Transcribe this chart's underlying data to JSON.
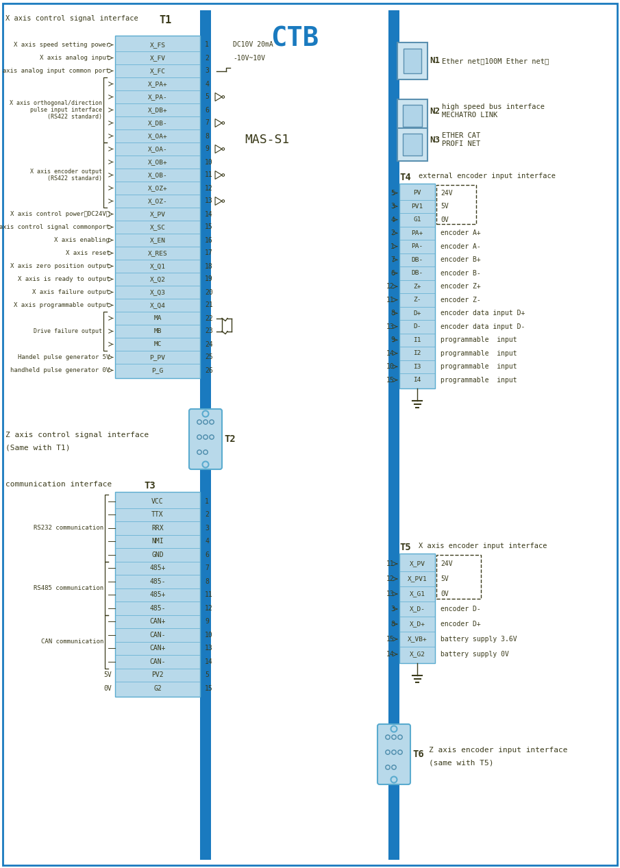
{
  "bg_color": "#ffffff",
  "main_bus_color": "#1a7abf",
  "connector_fill": "#b8d9ea",
  "connector_border": "#5aabcf",
  "text_color": "#3a3a1a",
  "blue_text": "#1a7abf",
  "t1_title": "T1",
  "t1_label": "X axis control signal interface",
  "t1_pins": [
    [
      "X_FS",
      "1",
      "X axis speed setting power"
    ],
    [
      "X_FV",
      "2",
      "X axis analog input"
    ],
    [
      "X_FC",
      "3",
      "X axis analog input common port"
    ],
    [
      "X_PA+",
      "4",
      ""
    ],
    [
      "X_PA-",
      "5",
      ""
    ],
    [
      "X_DB+",
      "6",
      ""
    ],
    [
      "X_DB-",
      "7",
      ""
    ],
    [
      "X_OA+",
      "8",
      ""
    ],
    [
      "X_OA-",
      "9",
      ""
    ],
    [
      "X_OB+",
      "10",
      ""
    ],
    [
      "X_OB-",
      "11",
      ""
    ],
    [
      "X_OZ+",
      "12",
      ""
    ],
    [
      "X_OZ-",
      "13",
      ""
    ],
    [
      "X_PV",
      "14",
      "X axis control power（DC24V）"
    ],
    [
      "X_SC",
      "15",
      "X axis control signal commonport"
    ],
    [
      "X_EN",
      "16",
      "X axis enabling"
    ],
    [
      "X_RES",
      "17",
      "X axis reset"
    ],
    [
      "X_Q1",
      "18",
      "X axis zero position output"
    ],
    [
      "X_Q2",
      "19",
      "X axis is ready to output"
    ],
    [
      "X_Q3",
      "20",
      "X axis failure output"
    ],
    [
      "X_Q4",
      "21",
      "X axis programmable output"
    ],
    [
      "MA",
      "22",
      ""
    ],
    [
      "MB",
      "23",
      ""
    ],
    [
      "MC",
      "24",
      ""
    ],
    [
      "P_PV",
      "25",
      "Handel pulse generator 5V"
    ],
    [
      "P_G",
      "26",
      "handheld pulse generator 0V"
    ]
  ],
  "t4_title": "T4",
  "t4_label": "external encoder input interface",
  "t4_pins": [
    [
      "PV",
      "5",
      "24V"
    ],
    [
      "PV1",
      "3",
      "5V"
    ],
    [
      "G1",
      "4",
      "0V"
    ],
    [
      "PA+",
      "2",
      "encoder A+"
    ],
    [
      "PA-",
      "1",
      "encoder A-"
    ],
    [
      "DB-",
      "7",
      "encoder B+"
    ],
    [
      "DB-",
      "6",
      "encoder B-"
    ],
    [
      "Z+",
      "12",
      "encoder Z+"
    ],
    [
      "Z-",
      "11",
      "encoder Z-"
    ],
    [
      "D+",
      "8",
      "encoder data input D+"
    ],
    [
      "D-",
      "13",
      "encoder data input D-"
    ],
    [
      "I1",
      "9",
      "programmable  input"
    ],
    [
      "I2",
      "14",
      "programmable  input"
    ],
    [
      "I3",
      "10",
      "programmable  input"
    ],
    [
      "I4",
      "15",
      "programmable  input"
    ]
  ],
  "t5_title": "T5",
  "t5_label": "X axis encoder input interface",
  "t5_pins": [
    [
      "X_PV",
      "11",
      "24V"
    ],
    [
      "X_PV1",
      "12",
      "5V"
    ],
    [
      "X_G1",
      "13",
      "0V"
    ],
    [
      "X_D-",
      "3",
      "encoder D-"
    ],
    [
      "X_D+",
      "8",
      "encoder D+"
    ],
    [
      "X_VB+",
      "15",
      "battery supply 3.6V"
    ],
    [
      "X_G2",
      "14",
      "battery supply 0V"
    ]
  ],
  "ctb_label": "CTB",
  "mas_label": "MAS-S1",
  "n1_label": "N1",
  "n1_text": "Ether net（100M Ether net）",
  "n2_label": "N2",
  "n3_label": "N3",
  "n2_text": "high speed bus interface\nMECHATRO LINK",
  "n3_text": "ETHER CAT\nPROFI NET",
  "t2_title": "T2",
  "t2_label_line1": "Z axis control signal interface",
  "t2_label_line2": "(Same with T1)",
  "t3_title": "T3",
  "t3_label": "communication interface",
  "t3_pins": [
    [
      "VCC",
      "1"
    ],
    [
      "TTX",
      "2"
    ],
    [
      "RRX",
      "3"
    ],
    [
      "NMI",
      "4"
    ],
    [
      "GND",
      "6"
    ],
    [
      "485+",
      "7"
    ],
    [
      "485-",
      "8"
    ],
    [
      "485+",
      "11"
    ],
    [
      "485-",
      "12"
    ],
    [
      "CAN+",
      "9"
    ],
    [
      "CAN-",
      "10"
    ],
    [
      "CAN+",
      "13"
    ],
    [
      "CAN-",
      "14"
    ],
    [
      "PV2",
      "5"
    ],
    [
      "G2",
      "15"
    ]
  ],
  "t6_title": "T6",
  "t6_label_line1": "Z axis encoder input interface",
  "t6_label_line2": "(same with T5)"
}
